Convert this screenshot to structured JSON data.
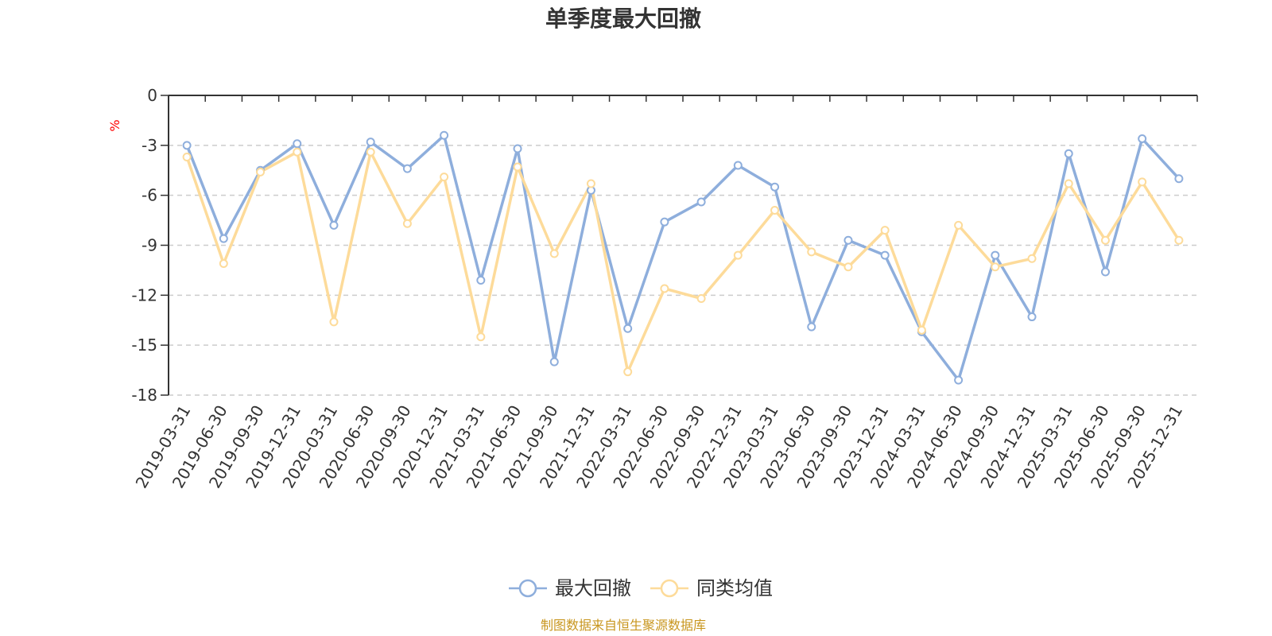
{
  "chart_data": {
    "type": "line",
    "title": "单季度最大回撤",
    "ylabel": "%",
    "xlabel": "",
    "ylim": [
      -18,
      0
    ],
    "yticks": [
      0,
      -3,
      -6,
      -9,
      -12,
      -15,
      -18
    ],
    "categories": [
      "2019-03-31",
      "2019-06-30",
      "2019-09-30",
      "2019-12-31",
      "2020-03-31",
      "2020-06-30",
      "2020-09-30",
      "2020-12-31",
      "2021-03-31",
      "2021-06-30",
      "2021-09-30",
      "2021-12-31",
      "2022-03-31",
      "2022-06-30",
      "2022-09-30",
      "2022-12-31",
      "2023-03-31",
      "2023-06-30",
      "2023-09-30",
      "2023-12-31",
      "2024-03-31",
      "2024-06-30",
      "2024-09-30",
      "2024-12-31",
      "2025-03-31",
      "2025-06-30",
      "2025-09-30",
      "2025-12-31"
    ],
    "series": [
      {
        "name": "最大回撤",
        "color": "#8eaedc",
        "values": [
          -3.0,
          -8.6,
          -4.5,
          -2.9,
          -7.8,
          -2.8,
          -4.4,
          -2.4,
          -11.1,
          -3.2,
          -16.0,
          -5.7,
          -14.0,
          -7.6,
          -6.4,
          -4.2,
          -5.5,
          -13.9,
          -8.7,
          -9.6,
          -14.2,
          -17.1,
          -9.6,
          -13.3,
          -3.5,
          -10.6,
          -2.6,
          -5.0
        ]
      },
      {
        "name": "同类均值",
        "color": "#fddb9a",
        "values": [
          -3.7,
          -10.1,
          -4.6,
          -3.4,
          -13.6,
          -3.4,
          -7.7,
          -4.9,
          -14.5,
          -4.3,
          -9.5,
          -5.3,
          -16.6,
          -11.6,
          -12.2,
          -9.6,
          -6.9,
          -9.4,
          -10.3,
          -8.1,
          -14.1,
          -7.8,
          -10.3,
          -9.8,
          -5.3,
          -8.7,
          -5.2,
          -8.7
        ]
      }
    ],
    "legend_position": "bottom-center",
    "grid": "dashed-horizontal",
    "source_note": "制图数据来自恒生聚源数据库"
  }
}
